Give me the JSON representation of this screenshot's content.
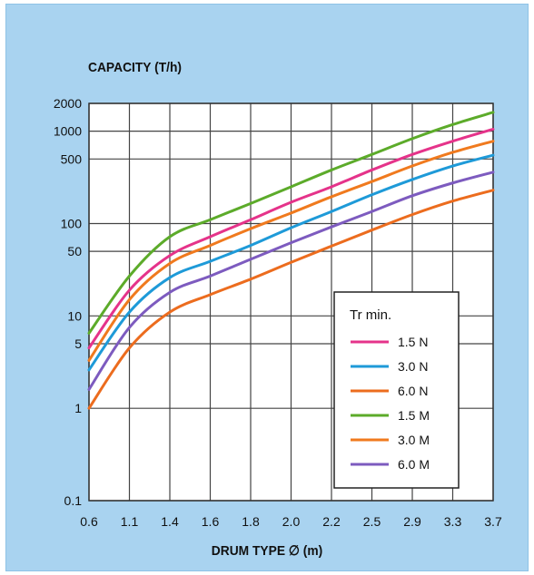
{
  "chart_data": {
    "type": "line",
    "title": "",
    "ylabel": "CAPACITY (T/h)",
    "xlabel": "DRUM TYPE ∅ (m)",
    "y_scale": "log",
    "ylim": [
      0.1,
      2000
    ],
    "y_ticks": [
      "2000",
      "1000",
      "500",
      "100",
      "50",
      "10",
      "5",
      "1",
      "0.1"
    ],
    "y_tick_values": [
      2000,
      1000,
      500,
      100,
      50,
      10,
      5,
      1,
      0.1
    ],
    "x_categories": [
      "0.6",
      "1.1",
      "1.4",
      "1.6",
      "1.8",
      "2.0",
      "2.2",
      "2.5",
      "2.9",
      "3.3",
      "3.7"
    ],
    "grid": true,
    "legend": {
      "title": "Tr min.",
      "placement": "lower-right"
    },
    "series": [
      {
        "name": "1.5 N",
        "color": "#e5338a",
        "x": [
          "0.6",
          "1.1",
          "1.4",
          "1.6",
          "1.8",
          "2.0",
          "2.2",
          "2.5",
          "2.9",
          "3.3",
          "3.7"
        ],
        "values": [
          4.5,
          19,
          45,
          72,
          110,
          170,
          250,
          380,
          560,
          780,
          1050
        ]
      },
      {
        "name": "3.0 N",
        "color": "#1e9ad8",
        "x": [
          "0.6",
          "1.1",
          "1.4",
          "1.6",
          "1.8",
          "2.0",
          "2.2",
          "2.5",
          "2.9",
          "3.3",
          "3.7"
        ],
        "values": [
          2.6,
          11,
          26,
          39,
          58,
          90,
          135,
          205,
          300,
          420,
          550
        ]
      },
      {
        "name": "6.0 N",
        "color": "#ec6c1e",
        "x": [
          "0.6",
          "1.1",
          "1.4",
          "1.6",
          "1.8",
          "2.0",
          "2.2",
          "2.5",
          "2.9",
          "3.3",
          "3.7"
        ],
        "values": [
          1.0,
          4.5,
          11,
          17,
          25,
          38,
          57,
          85,
          125,
          175,
          230
        ]
      },
      {
        "name": "1.5 M",
        "color": "#5cab2a",
        "x": [
          "0.6",
          "1.1",
          "1.4",
          "1.6",
          "1.8",
          "2.0",
          "2.2",
          "2.5",
          "2.9",
          "3.3",
          "3.7"
        ],
        "values": [
          6.5,
          27,
          72,
          110,
          165,
          250,
          380,
          560,
          830,
          1180,
          1600
        ]
      },
      {
        "name": "3.0 M",
        "color": "#f07a1e",
        "x": [
          "0.6",
          "1.1",
          "1.4",
          "1.6",
          "1.8",
          "2.0",
          "2.2",
          "2.5",
          "2.9",
          "3.3",
          "3.7"
        ],
        "values": [
          3.3,
          15,
          37,
          58,
          88,
          130,
          195,
          285,
          420,
          590,
          780
        ]
      },
      {
        "name": "6.0 M",
        "color": "#7d5bbf",
        "x": [
          "0.6",
          "1.1",
          "1.4",
          "1.6",
          "1.8",
          "2.0",
          "2.2",
          "2.5",
          "2.9",
          "3.3",
          "3.7"
        ],
        "values": [
          1.6,
          7.5,
          18,
          27,
          41,
          62,
          92,
          135,
          200,
          275,
          360
        ]
      }
    ]
  }
}
